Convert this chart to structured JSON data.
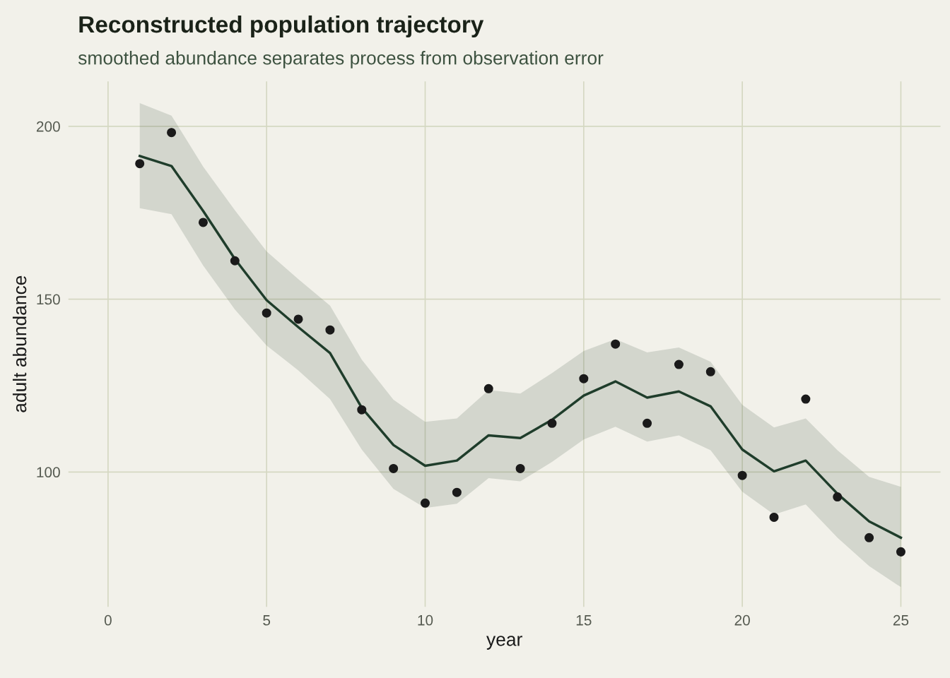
{
  "chart_data": {
    "type": "line",
    "title": "Reconstructed population trajectory",
    "subtitle": "smoothed abundance separates process from observation error",
    "xlabel": "year",
    "ylabel": "adult abundance",
    "x": [
      1,
      2,
      3,
      4,
      5,
      6,
      7,
      8,
      9,
      10,
      11,
      12,
      13,
      14,
      15,
      16,
      17,
      18,
      19,
      20,
      21,
      22,
      23,
      24,
      25
    ],
    "xlim": [
      -1.25,
      26.25
    ],
    "xticks": [
      0,
      5,
      10,
      15,
      20,
      25
    ],
    "ylim": [
      61,
      213
    ],
    "yticks": [
      100,
      150,
      200
    ],
    "grid": true,
    "legend": false,
    "series": [
      {
        "color": "#1f3d2b",
        "marker": "none",
        "line_style": "solid",
        "values": [
          191.4,
          188.5,
          175.5,
          161.6,
          149.7,
          141.9,
          134.4,
          118.6,
          107.8,
          101.8,
          103.3,
          110.6,
          109.8,
          115.1,
          122.1,
          126.2,
          121.5,
          123.3,
          119.0,
          106.5,
          100.2,
          103.3,
          93.7,
          85.7,
          81.0
        ],
        "upper": [
          206.7,
          203.1,
          188.3,
          175.7,
          163.8,
          155.8,
          148.1,
          132.5,
          120.9,
          114.5,
          115.5,
          123.7,
          122.7,
          128.6,
          135.0,
          138.4,
          134.6,
          136.0,
          131.9,
          119.4,
          112.9,
          115.5,
          106.3,
          98.6,
          95.7
        ],
        "lower": [
          176.3,
          174.6,
          159.7,
          147.0,
          136.6,
          129.4,
          121.1,
          106.5,
          95.1,
          89.6,
          90.8,
          98.2,
          97.3,
          102.9,
          109.4,
          113.1,
          108.8,
          110.6,
          106.3,
          94.3,
          87.7,
          90.6,
          81.0,
          72.8,
          66.7
        ]
      },
      {
        "type": "scatter",
        "color": "#1a1a1a",
        "marker": "circle",
        "values": [
          189.2,
          198.2,
          172.2,
          161.1,
          146.0,
          144.2,
          141.1,
          118.0,
          101.0,
          91.0,
          94.1,
          124.1,
          101.0,
          114.1,
          127.0,
          137.0,
          114.1,
          131.1,
          129.0,
          99.0,
          86.9,
          121.1,
          92.8,
          81.0,
          76.9
        ]
      }
    ]
  }
}
